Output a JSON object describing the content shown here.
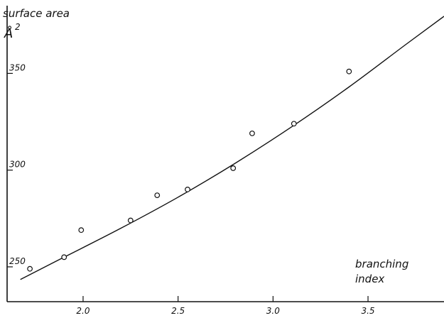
{
  "chart_data": {
    "type": "scatter",
    "title": "",
    "ylabel": "surface area",
    "y_unit": "Å",
    "y_unit_exponent": "2",
    "xlabel_line1": "branching",
    "xlabel_line2": "index",
    "xlim": [
      1.6,
      3.9
    ],
    "ylim": [
      232,
      385
    ],
    "x_ticks": [
      {
        "value": 2.0,
        "label": "2.0"
      },
      {
        "value": 2.5,
        "label": "2.5"
      },
      {
        "value": 3.0,
        "label": "3.0"
      },
      {
        "value": 3.5,
        "label": "3.5"
      }
    ],
    "y_ticks": [
      {
        "value": 250,
        "label": "250"
      },
      {
        "value": 300,
        "label": "300"
      },
      {
        "value": 350,
        "label": "350"
      }
    ],
    "grid": false,
    "legend": "none",
    "series": [
      {
        "points": [
          {
            "x": 1.72,
            "y": 249
          },
          {
            "x": 1.9,
            "y": 255
          },
          {
            "x": 1.99,
            "y": 269
          },
          {
            "x": 2.25,
            "y": 274
          },
          {
            "x": 2.39,
            "y": 287
          },
          {
            "x": 2.55,
            "y": 290
          },
          {
            "x": 2.79,
            "y": 301
          },
          {
            "x": 2.89,
            "y": 319
          },
          {
            "x": 3.11,
            "y": 324
          },
          {
            "x": 3.4,
            "y": 351
          }
        ]
      }
    ],
    "fit_curve": {
      "x": [
        1.67,
        1.9,
        2.2,
        2.5,
        2.8,
        3.1,
        3.4,
        3.7,
        3.9
      ],
      "y": [
        243.5,
        255,
        270,
        286,
        303.5,
        322.5,
        343,
        365,
        379.5
      ]
    }
  }
}
